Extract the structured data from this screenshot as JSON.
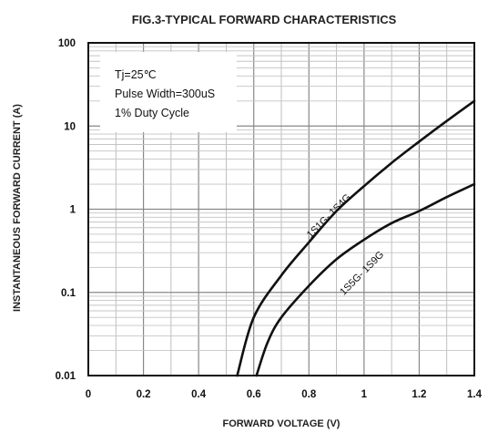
{
  "chart_data": {
    "type": "line",
    "title": "FIG.3-TYPICAL FORWARD CHARACTERISTICS",
    "xlabel": "FORWARD VOLTAGE (V)",
    "ylabel": "INSTANTANEOUS FORWARD CURRENT (A)",
    "xlim": [
      0,
      1.4
    ],
    "ylim": [
      0.01,
      100
    ],
    "yscale": "log",
    "grid": true,
    "xticks": [
      0,
      0.2,
      0.4,
      0.6,
      0.8,
      1,
      1.2,
      1.4
    ],
    "xtick_labels": [
      "0",
      "0.2",
      "0.4",
      "0.6",
      "0.8",
      "1",
      "1.2",
      "1.4"
    ],
    "yticks": [
      0.01,
      0.1,
      1,
      10,
      100
    ],
    "ytick_labels": [
      "0.01",
      "0.1",
      "1",
      "10",
      "100"
    ],
    "annotation": {
      "lines": [
        "Tj=25℃",
        "Pulse Width=300uS",
        "1% Duty  Cycle"
      ]
    },
    "series": [
      {
        "name": "1S1G- 1S4G",
        "x": [
          0.54,
          0.6,
          0.7,
          0.8,
          0.9,
          1.0,
          1.1,
          1.2,
          1.3,
          1.4
        ],
        "y": [
          0.01,
          0.05,
          0.16,
          0.4,
          0.95,
          1.9,
          3.6,
          6.5,
          11.5,
          20
        ]
      },
      {
        "name": "1S5G- 1S9G",
        "x": [
          0.61,
          0.65,
          0.7,
          0.8,
          0.9,
          1.0,
          1.1,
          1.2,
          1.3,
          1.4
        ],
        "y": [
          0.01,
          0.025,
          0.05,
          0.12,
          0.25,
          0.43,
          0.68,
          0.95,
          1.4,
          2.0
        ]
      }
    ]
  }
}
